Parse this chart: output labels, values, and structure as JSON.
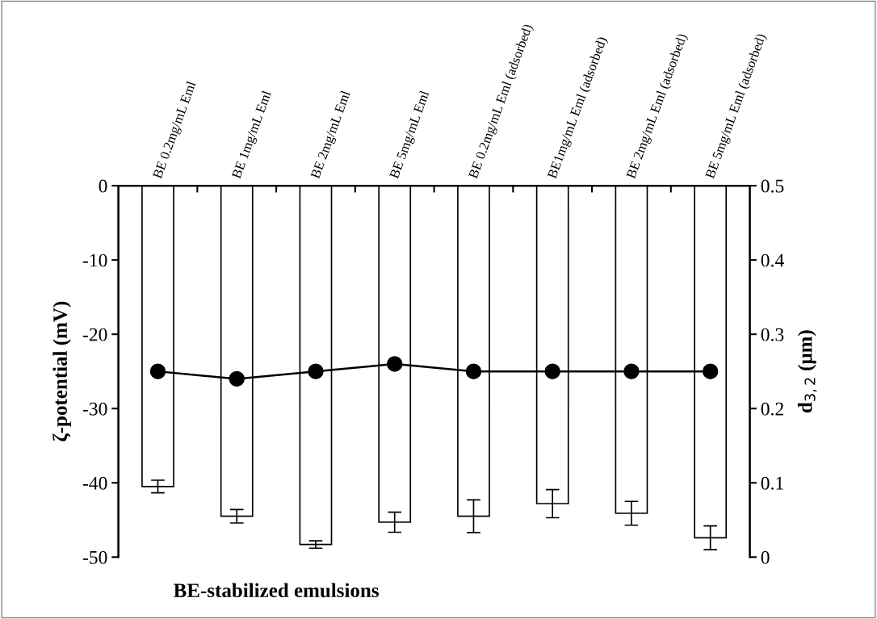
{
  "chart_data": {
    "type": "bar",
    "xlabel": "BE-stabilized emulsions",
    "ylabel": "ζ-potential (mV)",
    "y2label": "d$_{3,2}$ (μm)",
    "categories": [
      "BE 0.2mg/mL Eml",
      "BE 1mg/mL Eml",
      "BE 2mg/mL Eml",
      "BE 5mg/mL Eml",
      "BE 0.2mg/mL Eml (adsorbed)",
      "BE1mg/mL Eml (adsorbed)",
      "BE 2mg/mL Eml (adsorbed)",
      "BE 5mg/mL Eml (adsorbed)"
    ],
    "series": [
      {
        "color": "#ffffff",
        "values": [
          -40.5,
          -44.5,
          -48.3,
          -45.3,
          -44.5,
          -42.8,
          -44.1,
          -47.4
        ],
        "errors": [
          0.85,
          0.9,
          0.5,
          1.35,
          2.2,
          1.9,
          1.6,
          1.6
        ]
      },
      {
        "type": "line",
        "axis": "y2",
        "color": "#000000",
        "marker": "circle",
        "values": [
          0.25,
          0.24,
          0.25,
          0.26,
          0.25,
          0.25,
          0.25,
          0.25
        ]
      }
    ],
    "ylim": [
      -50,
      0
    ],
    "yticks": [
      {
        "value": -50,
        "label": "-50"
      },
      {
        "value": -40,
        "label": "-40"
      },
      {
        "value": -30,
        "label": "-30"
      },
      {
        "value": -20,
        "label": "-20"
      },
      {
        "value": -10,
        "label": "-10"
      },
      0
    ],
    "y2lim": [
      0,
      0.5
    ],
    "y2ticks": [
      0,
      0.1,
      0.2,
      0.3,
      0.4,
      0.5
    ],
    "grid": false,
    "legend": false
  }
}
